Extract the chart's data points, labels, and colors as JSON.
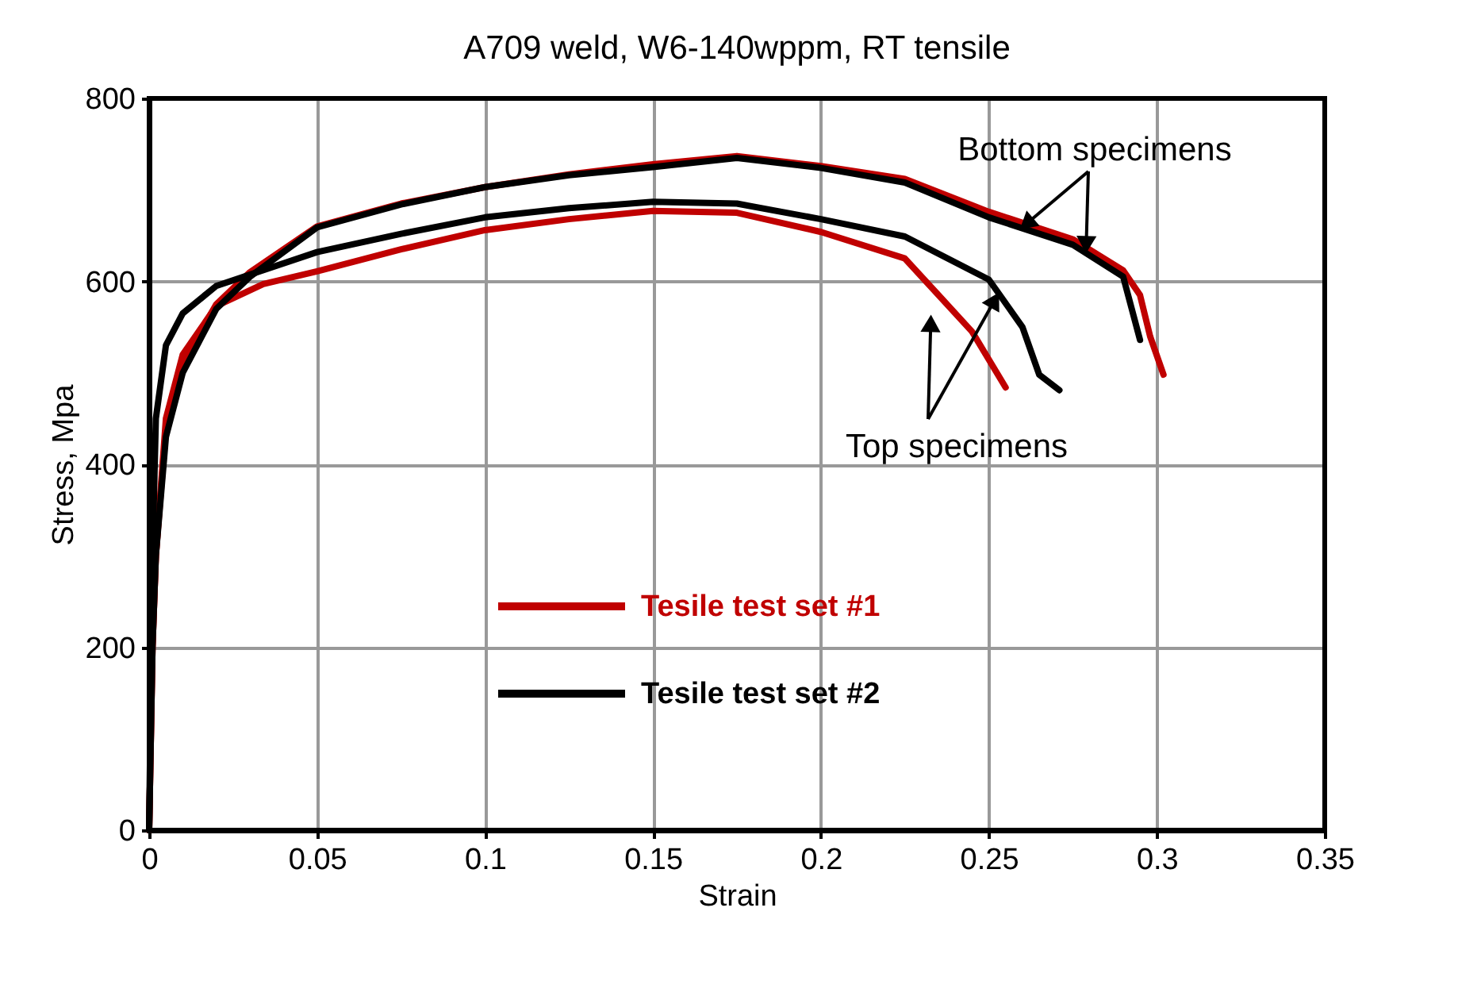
{
  "chart_data": {
    "type": "line",
    "title": "A709 weld, W6-140wppm, RT tensile",
    "xlabel": "Strain",
    "ylabel": "Stress, Mpa",
    "series": [
      {
        "name": "Tesile test set #1",
        "color": "#c00000",
        "x": [
          0,
          0.001,
          0.002,
          0.005,
          0.01,
          0.02,
          0.03,
          0.05,
          0.075,
          0.1,
          0.125,
          0.15,
          0.175,
          0.2,
          0.225,
          0.25,
          0.275,
          0.29,
          0.295,
          0.298,
          0.302
        ],
        "values": [
          0,
          200,
          300,
          440,
          510,
          575,
          610,
          660,
          685,
          703,
          717,
          728,
          737,
          726,
          712,
          676,
          646,
          612,
          585,
          540,
          498
        ]
      },
      {
        "color": "#c00000",
        "x": [
          0,
          0.001,
          0.002,
          0.005,
          0.01,
          0.02,
          0.034,
          0.05,
          0.075,
          0.1,
          0.125,
          0.15,
          0.175,
          0.2,
          0.225,
          0.235,
          0.245,
          0.255
        ],
        "values": [
          0,
          200,
          300,
          450,
          520,
          573,
          597,
          611,
          635,
          656,
          668,
          677,
          675,
          654,
          625,
          585,
          545,
          484
        ]
      },
      {
        "name": "Tesile test set #2",
        "color": "#000000",
        "x": [
          0,
          0.001,
          0.002,
          0.005,
          0.01,
          0.02,
          0.03,
          0.05,
          0.075,
          0.1,
          0.125,
          0.15,
          0.175,
          0.2,
          0.225,
          0.25,
          0.275,
          0.29,
          0.295
        ],
        "values": [
          0,
          200,
          300,
          430,
          500,
          570,
          605,
          659,
          684,
          703,
          716,
          725,
          735,
          724,
          708,
          670,
          640,
          605,
          536
        ]
      },
      {
        "color": "#000000",
        "x": [
          0,
          0.001,
          0.002,
          0.005,
          0.01,
          0.02,
          0.05,
          0.075,
          0.1,
          0.125,
          0.15,
          0.175,
          0.2,
          0.225,
          0.25,
          0.26,
          0.265,
          0.271
        ],
        "values": [
          0,
          300,
          450,
          530,
          565,
          595,
          632,
          652,
          670,
          680,
          687,
          685,
          668,
          649,
          602,
          550,
          498,
          481
        ]
      }
    ],
    "xlim": [
      0,
      0.35
    ],
    "xticks": [
      0,
      0.05,
      0.1,
      0.15,
      0.2,
      0.25,
      0.3,
      0.35
    ],
    "ylim": [
      0,
      800
    ],
    "yticks": [
      0,
      200,
      400,
      600,
      800
    ],
    "grid": true,
    "legend": "left",
    "line_style": "solid",
    "marker": "none",
    "annotations": [
      {
        "text": "Bottom specimens",
        "x": 0.279,
        "y": 640
      },
      {
        "text": "Top specimens",
        "x": 0.2327,
        "y": 554
      }
    ]
  }
}
